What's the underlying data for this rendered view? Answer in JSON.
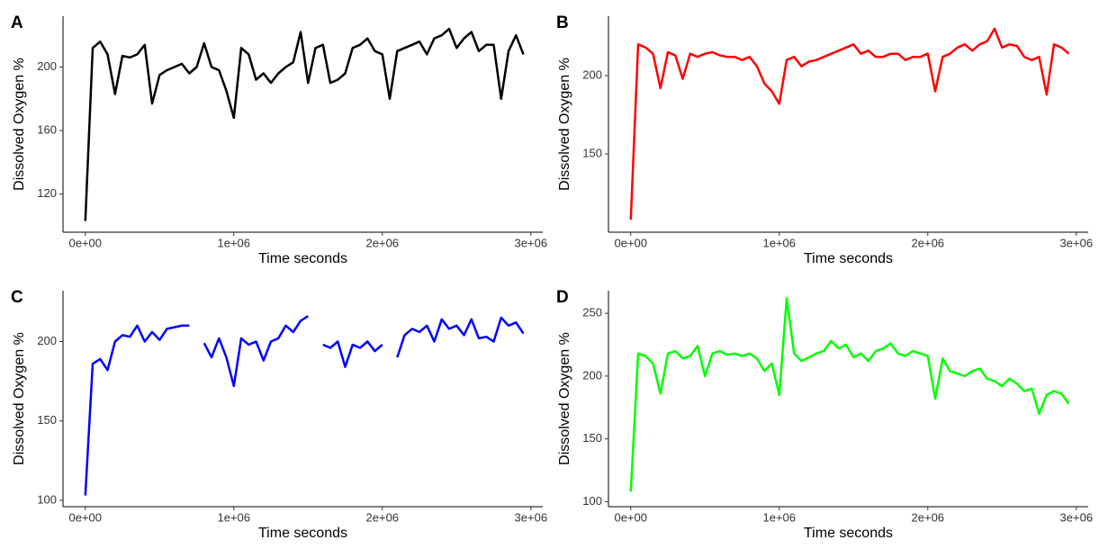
{
  "chart_data": [
    {
      "type": "line",
      "panel_label": "A",
      "x_label": "Time seconds",
      "y_label": "Dissolved Oxygen %",
      "color": "#000000",
      "x": [
        0,
        50000,
        100000,
        150000,
        200000,
        250000,
        300000,
        350000,
        400000,
        450000,
        500000,
        550000,
        600000,
        650000,
        700000,
        750000,
        800000,
        850000,
        900000,
        950000,
        1000000,
        1050000,
        1100000,
        1150000,
        1200000,
        1250000,
        1300000,
        1350000,
        1400000,
        1450000,
        1500000,
        1550000,
        1600000,
        1650000,
        1700000,
        1750000,
        1800000,
        1850000,
        1900000,
        1950000,
        2000000,
        2050000,
        2100000,
        2150000,
        2200000,
        2250000,
        2300000,
        2350000,
        2400000,
        2450000,
        2500000,
        2550000,
        2600000,
        2650000,
        2700000,
        2750000,
        2800000,
        2850000,
        2900000,
        2950000
      ],
      "values": [
        103,
        212,
        216,
        208,
        183,
        207,
        206,
        208,
        214,
        177,
        195,
        198,
        200,
        202,
        196,
        200,
        215,
        200,
        198,
        185,
        168,
        212,
        208,
        192,
        196,
        190,
        196,
        200,
        203,
        222,
        190,
        212,
        214,
        190,
        192,
        196,
        212,
        214,
        218,
        210,
        208,
        180,
        210,
        212,
        214,
        216,
        208,
        218,
        220,
        224,
        212,
        218,
        222,
        210,
        214,
        214,
        180,
        210,
        220,
        208
      ],
      "xlim": [
        -150000,
        3080000
      ],
      "ylim": [
        96,
        232
      ],
      "xticks": [
        {
          "value": 0,
          "label": "0e+00"
        },
        {
          "value": 1000000,
          "label": "1e+06"
        },
        {
          "value": 2000000,
          "label": "2e+06"
        },
        {
          "value": 3000000,
          "label": "3e+06"
        }
      ],
      "yticks": [
        120,
        160,
        200
      ]
    },
    {
      "type": "line",
      "panel_label": "B",
      "x_label": "Time seconds",
      "y_label": "Dissolved Oxygen %",
      "color": "#ff0000",
      "x": [
        0,
        50000,
        100000,
        150000,
        200000,
        250000,
        300000,
        350000,
        400000,
        450000,
        500000,
        550000,
        600000,
        650000,
        700000,
        750000,
        800000,
        850000,
        900000,
        950000,
        1000000,
        1050000,
        1100000,
        1150000,
        1200000,
        1250000,
        1300000,
        1350000,
        1400000,
        1450000,
        1500000,
        1550000,
        1600000,
        1650000,
        1700000,
        1750000,
        1800000,
        1850000,
        1900000,
        1950000,
        2000000,
        2050000,
        2100000,
        2150000,
        2200000,
        2250000,
        2300000,
        2350000,
        2400000,
        2450000,
        2500000,
        2550000,
        2600000,
        2650000,
        2700000,
        2750000,
        2800000,
        2850000,
        2900000,
        2950000
      ],
      "values": [
        108,
        220,
        218,
        214,
        192,
        215,
        213,
        198,
        214,
        212,
        214,
        215,
        213,
        212,
        212,
        210,
        212,
        206,
        195,
        190,
        182,
        210,
        212,
        206,
        209,
        210,
        212,
        214,
        216,
        218,
        220,
        214,
        216,
        212,
        212,
        214,
        214,
        210,
        212,
        212,
        214,
        190,
        212,
        214,
        218,
        220,
        216,
        220,
        222,
        230,
        218,
        220,
        219,
        212,
        210,
        212,
        188,
        220,
        218,
        214
      ],
      "xlim": [
        -150000,
        3080000
      ],
      "ylim": [
        100,
        238
      ],
      "xticks": [
        {
          "value": 0,
          "label": "0e+00"
        },
        {
          "value": 1000000,
          "label": "1e+06"
        },
        {
          "value": 2000000,
          "label": "2e+06"
        },
        {
          "value": 3000000,
          "label": "3e+06"
        }
      ],
      "yticks": [
        150,
        200
      ]
    },
    {
      "type": "line",
      "panel_label": "C",
      "x_label": "Time seconds",
      "y_label": "Dissolved Oxygen %",
      "color": "#0000ff",
      "x": [
        0,
        50000,
        100000,
        150000,
        200000,
        250000,
        300000,
        350000,
        400000,
        450000,
        500000,
        550000,
        600000,
        650000,
        700000,
        750000,
        800000,
        850000,
        900000,
        950000,
        1000000,
        1050000,
        1100000,
        1150000,
        1200000,
        1250000,
        1300000,
        1350000,
        1400000,
        1450000,
        1500000,
        1550000,
        1600000,
        1650000,
        1700000,
        1750000,
        1800000,
        1850000,
        1900000,
        1950000,
        2000000,
        2050000,
        2100000,
        2150000,
        2200000,
        2250000,
        2300000,
        2350000,
        2400000,
        2450000,
        2500000,
        2550000,
        2600000,
        2650000,
        2700000,
        2750000,
        2800000,
        2850000,
        2900000,
        2950000
      ],
      "values": [
        103,
        186,
        189,
        182,
        200,
        204,
        203,
        210,
        200,
        206,
        201,
        208,
        209,
        210,
        210,
        null,
        199,
        190,
        202,
        190,
        172,
        202,
        198,
        200,
        188,
        200,
        202,
        210,
        206,
        213,
        216,
        null,
        198,
        196,
        200,
        184,
        198,
        196,
        200,
        194,
        198,
        null,
        190,
        204,
        208,
        206,
        210,
        200,
        214,
        208,
        210,
        204,
        214,
        202,
        203,
        200,
        215,
        210,
        212,
        205
      ],
      "xlim": [
        -150000,
        3080000
      ],
      "ylim": [
        96,
        232
      ],
      "xticks": [
        {
          "value": 0,
          "label": "0e+00"
        },
        {
          "value": 1000000,
          "label": "1e+06"
        },
        {
          "value": 2000000,
          "label": "2e+06"
        },
        {
          "value": 3000000,
          "label": "3e+06"
        }
      ],
      "yticks": [
        100,
        150,
        200
      ]
    },
    {
      "type": "line",
      "panel_label": "D",
      "x_label": "Time seconds",
      "y_label": "Dissolved Oxygen %",
      "color": "#00ff00",
      "x": [
        0,
        50000,
        100000,
        150000,
        200000,
        250000,
        300000,
        350000,
        400000,
        450000,
        500000,
        550000,
        600000,
        650000,
        700000,
        750000,
        800000,
        850000,
        900000,
        950000,
        1000000,
        1050000,
        1100000,
        1150000,
        1200000,
        1250000,
        1300000,
        1350000,
        1400000,
        1450000,
        1500000,
        1550000,
        1600000,
        1650000,
        1700000,
        1750000,
        1800000,
        1850000,
        1900000,
        1950000,
        2000000,
        2050000,
        2100000,
        2150000,
        2200000,
        2250000,
        2300000,
        2350000,
        2400000,
        2450000,
        2500000,
        2550000,
        2600000,
        2650000,
        2700000,
        2750000,
        2800000,
        2850000,
        2900000,
        2950000
      ],
      "values": [
        108,
        218,
        216,
        210,
        186,
        218,
        220,
        214,
        216,
        224,
        200,
        218,
        220,
        217,
        218,
        216,
        218,
        214,
        204,
        210,
        185,
        262,
        218,
        212,
        215,
        218,
        220,
        228,
        222,
        225,
        215,
        218,
        212,
        220,
        222,
        226,
        218,
        216,
        220,
        218,
        216,
        182,
        214,
        204,
        202,
        200,
        204,
        206,
        198,
        196,
        192,
        198,
        194,
        188,
        190,
        170,
        185,
        188,
        186,
        178
      ],
      "xlim": [
        -150000,
        3080000
      ],
      "ylim": [
        96,
        268
      ],
      "xticks": [
        {
          "value": 0,
          "label": "0e+00"
        },
        {
          "value": 1000000,
          "label": "1e+06"
        },
        {
          "value": 2000000,
          "label": "2e+06"
        },
        {
          "value": 3000000,
          "label": "3e+06"
        }
      ],
      "yticks": [
        100,
        150,
        200,
        250
      ]
    }
  ]
}
